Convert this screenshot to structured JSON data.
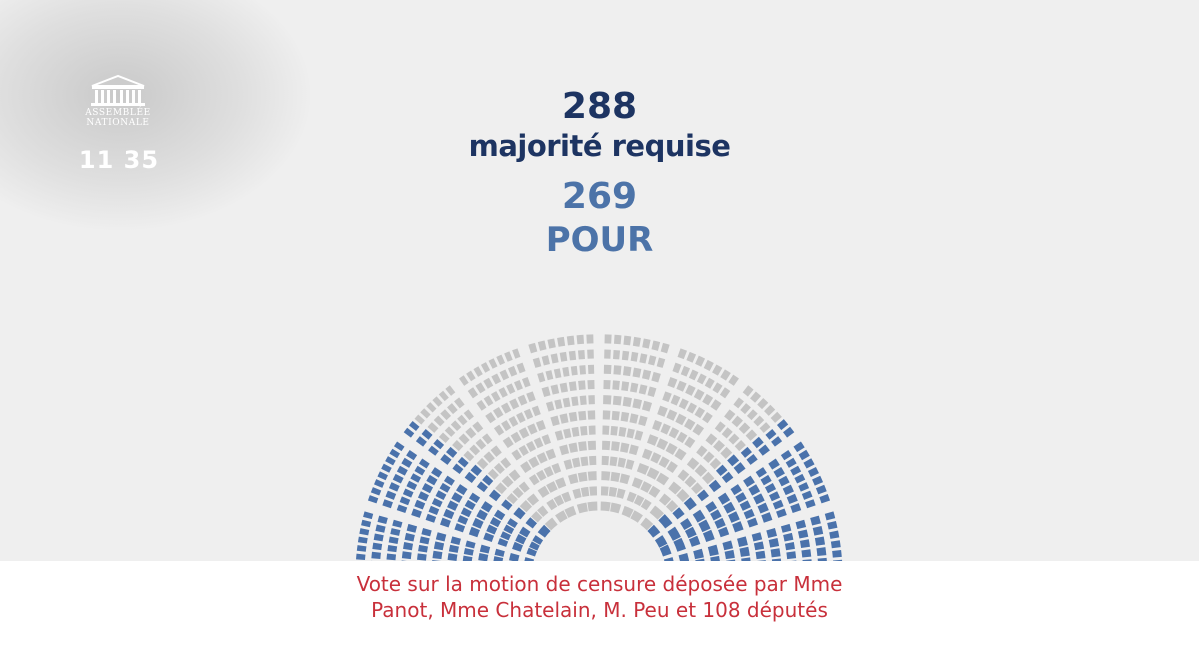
{
  "logo": {
    "line1": "ASSEMBLÉE",
    "line2": "NATIONALE",
    "icon": "assemblee-building-icon"
  },
  "clock": "11 35",
  "result": {
    "required_number": "288",
    "required_label": "majorité requise",
    "for_number": "269",
    "for_label": "POUR"
  },
  "hemicycle": {
    "total_seats": 577,
    "seats_voting_for": 269,
    "colors": {
      "for": "#4a72ab",
      "other": "#c4c4c4",
      "background": "#efefef",
      "required_text": "#1d3462",
      "for_text": "#4c73a8",
      "caption_text": "#c8303b"
    }
  },
  "caption": {
    "line1": "Vote sur la motion de censure déposée par Mme",
    "line2": "Panot, Mme Chatelain, M. Peu et 108 députés"
  }
}
